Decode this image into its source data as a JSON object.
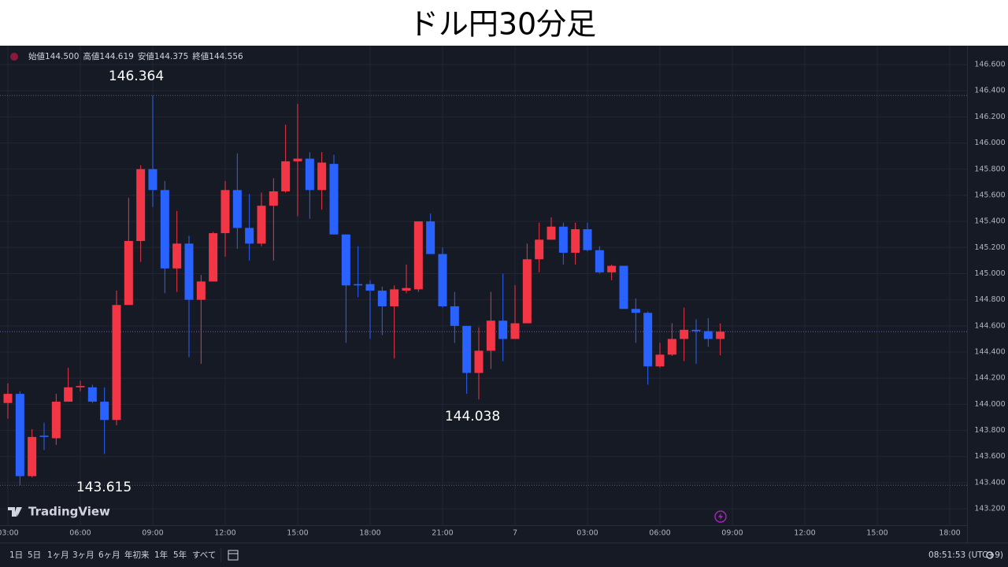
{
  "chart_data": {
    "type": "candlestick",
    "title": "ドル円30分足",
    "ohlc_header": [
      {
        "label": "始値",
        "value": "144.500"
      },
      {
        "label": "高値",
        "value": "144.619"
      },
      {
        "label": "安値",
        "value": "144.375"
      },
      {
        "label": "終値",
        "value": "144.556"
      }
    ],
    "annotations": [
      "146.364",
      "143.615",
      "144.038"
    ],
    "categories": [
      "03:00",
      null,
      null,
      null,
      null,
      null,
      "06:00",
      null,
      null,
      null,
      null,
      null,
      "09:00",
      null,
      null,
      null,
      null,
      null,
      "12:00",
      null,
      null,
      null,
      null,
      null,
      "15:00",
      null,
      null,
      null,
      null,
      null,
      "18:00",
      null,
      null,
      null,
      null,
      null,
      "21:00",
      null,
      null,
      null,
      null,
      null,
      "7",
      null,
      null,
      null,
      null,
      null,
      "03:00",
      null,
      null,
      null,
      null,
      null,
      "06:00",
      null,
      null,
      null,
      null,
      null,
      "09:00",
      null,
      null,
      null,
      null,
      null,
      "12:00",
      null,
      null,
      null,
      null,
      null,
      "15:00",
      null,
      null,
      null,
      null,
      null,
      "18:00"
    ],
    "open": [
      144.01,
      144.08,
      143.45,
      143.76,
      143.74,
      144.02,
      144.13,
      144.13,
      144.02,
      143.88,
      144.76,
      145.25,
      145.8,
      145.64,
      145.04,
      145.23,
      144.8,
      144.94,
      145.31,
      145.64,
      145.35,
      145.23,
      145.52,
      145.63,
      145.86,
      145.88,
      145.64,
      145.84,
      145.3,
      144.92,
      144.92,
      144.87,
      144.75,
      144.87,
      144.88,
      145.4,
      145.15,
      144.75,
      144.6,
      144.24,
      144.41,
      144.64,
      144.5,
      144.62,
      145.11,
      145.26,
      145.36,
      145.16,
      145.34,
      145.18,
      145.01,
      145.06,
      144.73,
      144.7,
      144.29,
      144.38,
      144.5,
      144.57,
      144.56,
      144.5,
      null,
      null,
      null,
      null,
      null,
      null,
      null,
      null,
      null,
      null,
      null,
      null,
      null,
      null,
      null,
      null,
      null,
      null,
      null
    ],
    "high": [
      144.16,
      144.1,
      143.81,
      143.86,
      144.08,
      144.28,
      144.18,
      144.15,
      144.13,
      144.87,
      145.58,
      145.83,
      146.364,
      145.71,
      145.48,
      145.29,
      144.99,
      145.32,
      145.71,
      145.92,
      145.61,
      145.62,
      145.73,
      146.14,
      146.3,
      145.93,
      145.93,
      145.91,
      145.3,
      145.21,
      144.95,
      144.9,
      144.91,
      145.07,
      145.4,
      145.46,
      145.2,
      144.86,
      144.6,
      144.59,
      144.86,
      145.0,
      144.91,
      145.23,
      145.39,
      145.43,
      145.39,
      145.39,
      145.39,
      145.21,
      145.07,
      145.06,
      144.81,
      144.71,
      144.47,
      144.62,
      144.74,
      144.65,
      144.66,
      144.619,
      null,
      null,
      null,
      null,
      null,
      null,
      null,
      null,
      null,
      null,
      null,
      null,
      null,
      null,
      null,
      null,
      null,
      null,
      null
    ],
    "low": [
      143.89,
      143.38,
      143.44,
      143.65,
      143.69,
      144.02,
      144.1,
      144.01,
      143.62,
      143.84,
      144.76,
      145.09,
      145.51,
      144.85,
      144.86,
      144.36,
      144.31,
      144.94,
      145.13,
      145.19,
      145.1,
      145.21,
      145.1,
      145.62,
      145.44,
      145.42,
      145.49,
      145.3,
      144.47,
      144.82,
      144.5,
      144.53,
      144.35,
      144.85,
      144.86,
      145.15,
      144.74,
      144.47,
      144.08,
      144.038,
      144.27,
      144.33,
      144.5,
      144.62,
      145.01,
      145.26,
      145.07,
      145.07,
      145.17,
      145.0,
      144.95,
      144.73,
      144.47,
      144.15,
      144.28,
      144.37,
      144.33,
      144.31,
      144.44,
      144.375,
      null,
      null,
      null,
      null,
      null,
      null,
      null,
      null,
      null,
      null,
      null,
      null,
      null,
      null,
      null,
      null,
      null,
      null,
      null
    ],
    "close": [
      144.08,
      143.45,
      143.75,
      143.75,
      144.02,
      144.13,
      144.14,
      144.02,
      143.88,
      144.76,
      145.25,
      145.8,
      145.64,
      145.04,
      145.23,
      144.8,
      144.94,
      145.31,
      145.64,
      145.35,
      145.23,
      145.52,
      145.63,
      145.86,
      145.88,
      145.64,
      145.85,
      145.3,
      144.91,
      144.91,
      144.87,
      144.75,
      144.88,
      144.89,
      145.4,
      145.15,
      144.75,
      144.6,
      144.24,
      144.41,
      144.64,
      144.5,
      144.62,
      145.11,
      145.26,
      145.36,
      145.16,
      145.34,
      145.18,
      145.01,
      145.06,
      144.73,
      144.7,
      144.29,
      144.38,
      144.5,
      144.57,
      144.56,
      144.5,
      144.556,
      null,
      null,
      null,
      null,
      null,
      null,
      null,
      null,
      null,
      null,
      null,
      null,
      null,
      null,
      null,
      null,
      null,
      null,
      null
    ],
    "up_color": "#f23645",
    "down_color": "#2962ff",
    "ylim": [
      143.068,
      146.745
    ],
    "yticks": [
      {
        "value": 146.6,
        "label": "146.600"
      },
      {
        "value": 146.4,
        "label": "146.400"
      },
      {
        "value": 146.2,
        "label": "146.200"
      },
      {
        "value": 146.0,
        "label": "146.000"
      },
      {
        "value": 145.8,
        "label": "145.800"
      },
      {
        "value": 145.6,
        "label": "145.600"
      },
      {
        "value": 145.4,
        "label": "145.400"
      },
      {
        "value": 145.2,
        "label": "145.200"
      },
      {
        "value": 145.0,
        "label": "145.000"
      },
      {
        "value": 144.8,
        "label": "144.800"
      },
      {
        "value": 144.6,
        "label": "144.600"
      },
      {
        "value": 144.4,
        "label": "144.400"
      },
      {
        "value": 144.2,
        "label": "144.200"
      },
      {
        "value": 144.0,
        "label": "144.000"
      },
      {
        "value": 143.8,
        "label": "143.800"
      },
      {
        "value": 143.6,
        "label": "143.600"
      },
      {
        "value": 143.4,
        "label": "143.400"
      },
      {
        "value": 143.2,
        "label": "143.200"
      }
    ],
    "grid": true
  },
  "ui": {
    "brand": "TradingView",
    "ranges": [
      "1日",
      "5日",
      "1ヶ月",
      "3ヶ月",
      "6ヶ月",
      "年初来",
      "1年",
      "5年",
      "すべて"
    ],
    "clock": "08:51:53 (UTC+9)"
  }
}
